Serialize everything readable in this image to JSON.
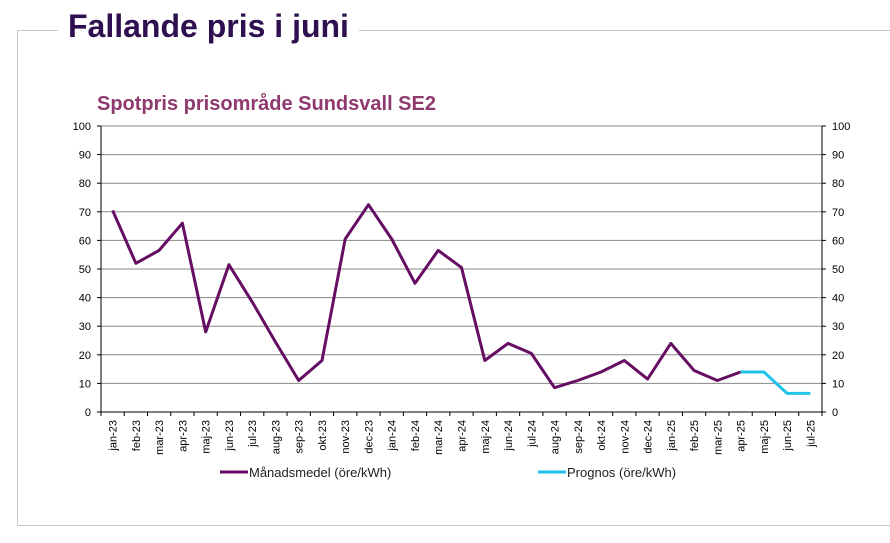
{
  "page": {
    "heading": "Fallande pris i juni"
  },
  "colors": {
    "heading": "#2e0f4f",
    "chart_title": "#8e3a6e",
    "series_actual": "#650e63",
    "series_forecast": "#1fc2e8",
    "grid": "#888888"
  },
  "chart_data": {
    "type": "line",
    "title": "Spotpris prisområde Sundsvall SE2",
    "xlabel": "",
    "ylabel": "",
    "ylim": [
      0,
      100
    ],
    "yticks": [
      0,
      10,
      20,
      30,
      40,
      50,
      60,
      70,
      80,
      90,
      100
    ],
    "y_axis_both_sides": true,
    "grid": true,
    "legend_position": "bottom",
    "categories": [
      "jan-23",
      "feb-23",
      "mar-23",
      "apr-23",
      "maj-23",
      "jun-23",
      "jul-23",
      "aug-23",
      "sep-23",
      "okt-23",
      "nov-23",
      "dec-23",
      "jan-24",
      "feb-24",
      "mar-24",
      "apr-24",
      "maj-24",
      "jun-24",
      "jul-24",
      "aug-24",
      "sep-24",
      "okt-24",
      "nov-24",
      "dec-24",
      "jan-25",
      "feb-25",
      "mar-25",
      "apr-25",
      "maj-25",
      "jun-25",
      "jul-25"
    ],
    "series": [
      {
        "name": "Månadsmedel (öre/kWh)",
        "color": "#650e63",
        "values": [
          70.5,
          52,
          56.5,
          66,
          28,
          51.5,
          38.5,
          24.5,
          11,
          18,
          60.5,
          72.5,
          60.5,
          45,
          56.5,
          50.5,
          18,
          24,
          20.5,
          8.5,
          11,
          14,
          18,
          11.5,
          24,
          14.5,
          11,
          14,
          null,
          null,
          null
        ]
      },
      {
        "name": "Prognos (öre/kWh)",
        "color": "#1fc2e8",
        "values": [
          null,
          null,
          null,
          null,
          null,
          null,
          null,
          null,
          null,
          null,
          null,
          null,
          null,
          null,
          null,
          null,
          null,
          null,
          null,
          null,
          null,
          null,
          null,
          null,
          null,
          null,
          null,
          14,
          14,
          6.5,
          6.5
        ]
      }
    ]
  }
}
